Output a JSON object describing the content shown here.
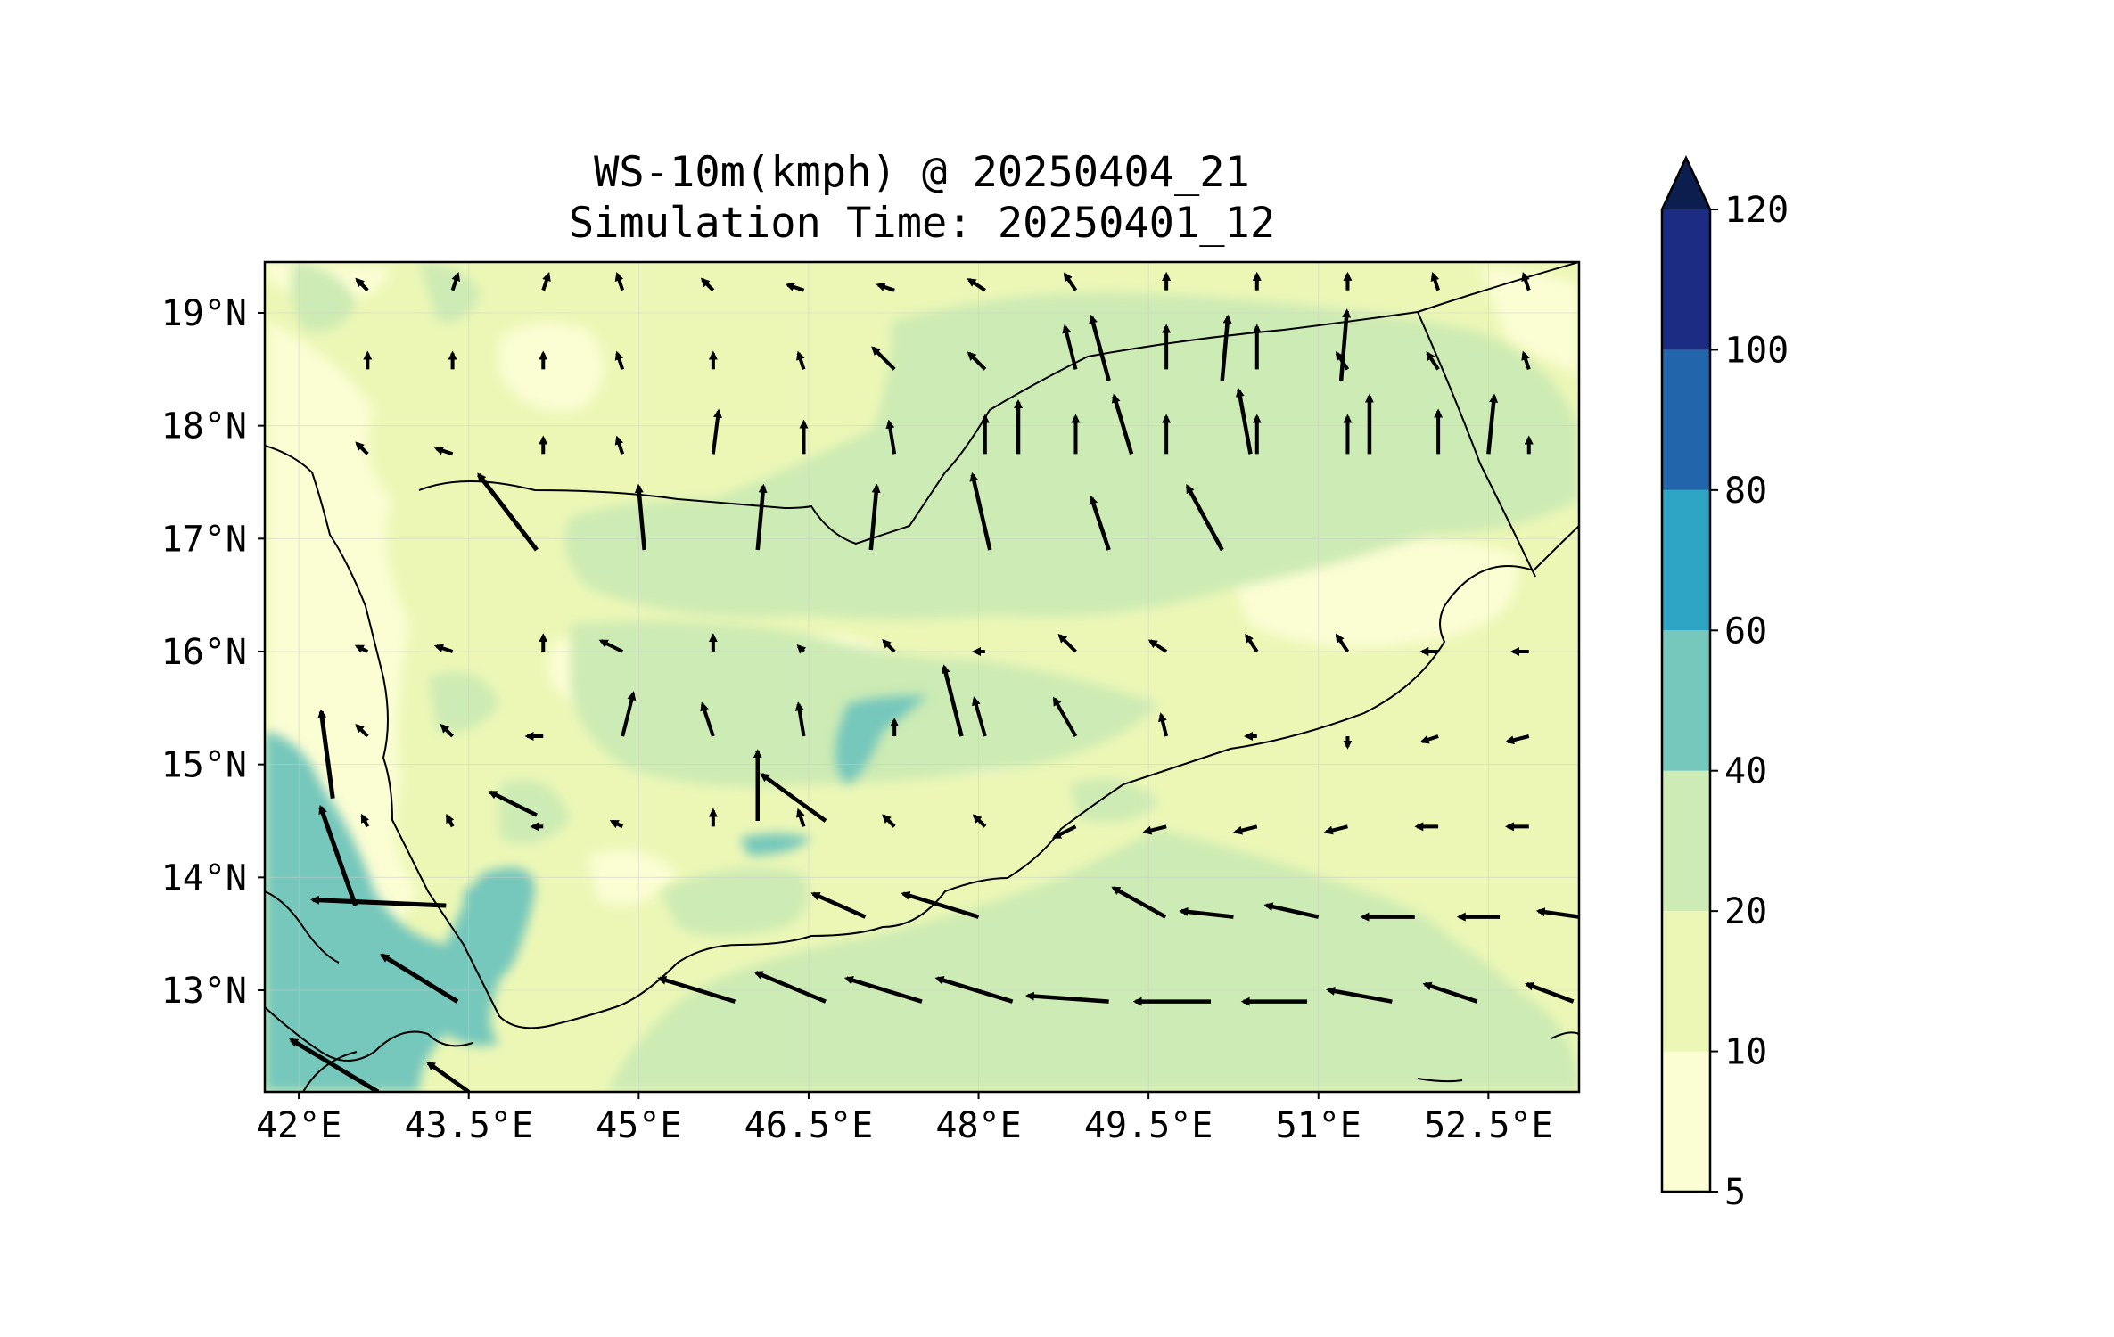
{
  "title_line1": "WS-10m(kmph) @ 20250404_21",
  "title_line2": "Simulation Time: 20250401_12",
  "map": {
    "lon_range": [
      41.7,
      53.3
    ],
    "lat_range": [
      12.1,
      19.45
    ],
    "x_ticks": [
      "42°E",
      "43.5°E",
      "45°E",
      "46.5°E",
      "48°E",
      "49.5°E",
      "51°E",
      "52.5°E"
    ],
    "y_ticks": [
      "19°N",
      "18°N",
      "17°N",
      "16°N",
      "15°N",
      "14°N",
      "13°N"
    ],
    "grid": true
  },
  "colorbar": {
    "levels": [
      "5",
      "10",
      "20",
      "40",
      "60",
      "80",
      "100",
      "120"
    ],
    "colors": [
      "#fbfdd3",
      "#ecf7b6",
      "#cdebb4",
      "#76c7bc",
      "#2ea4c5",
      "#2265ab",
      "#1d2c83"
    ],
    "extend_color": "#0c1e4d",
    "extend": "max"
  },
  "chart_data": {
    "type": "heatmap",
    "variable": "10 m wind speed (kmph) with wind vectors",
    "color_levels": [
      5,
      10,
      20,
      40,
      60,
      80,
      100,
      120
    ],
    "wind_vectors": [
      {
        "lon": 43.3,
        "lat": 13.75,
        "u": -23,
        "v": 1
      },
      {
        "lon": 42.5,
        "lat": 13.75,
        "u": -6,
        "v": 17
      },
      {
        "lon": 43.4,
        "lat": 12.9,
        "u": -13,
        "v": 8
      },
      {
        "lon": 43.5,
        "lat": 12.1,
        "u": -7,
        "v": 5
      },
      {
        "lon": 42.7,
        "lat": 12.1,
        "u": -15,
        "v": 9
      },
      {
        "lon": 42.3,
        "lat": 14.7,
        "u": -2,
        "v": 15
      },
      {
        "lon": 44.1,
        "lat": 14.55,
        "u": -8,
        "v": 4
      },
      {
        "lon": 44.1,
        "lat": 16.9,
        "u": -10,
        "v": 13
      },
      {
        "lon": 45.05,
        "lat": 16.9,
        "u": -1,
        "v": 11
      },
      {
        "lon": 46.05,
        "lat": 16.9,
        "u": 1,
        "v": 11
      },
      {
        "lon": 47.05,
        "lat": 16.9,
        "u": 1,
        "v": 11
      },
      {
        "lon": 48.1,
        "lat": 16.9,
        "u": -3,
        "v": 13
      },
      {
        "lon": 49.15,
        "lat": 16.9,
        "u": -3,
        "v": 9
      },
      {
        "lon": 50.15,
        "lat": 16.9,
        "u": -6,
        "v": 11
      },
      {
        "lon": 48.35,
        "lat": 17.75,
        "u": 0,
        "v": 9
      },
      {
        "lon": 49.35,
        "lat": 17.75,
        "u": -3,
        "v": 10
      },
      {
        "lon": 50.4,
        "lat": 17.75,
        "u": -2,
        "v": 11
      },
      {
        "lon": 51.45,
        "lat": 17.75,
        "u": 0,
        "v": 10
      },
      {
        "lon": 52.5,
        "lat": 17.75,
        "u": 1,
        "v": 10
      },
      {
        "lon": 49.15,
        "lat": 18.4,
        "u": -3,
        "v": 11
      },
      {
        "lon": 50.15,
        "lat": 18.4,
        "u": 1,
        "v": 11
      },
      {
        "lon": 51.2,
        "lat": 18.4,
        "u": 1,
        "v": 12
      },
      {
        "lon": 47.85,
        "lat": 15.25,
        "u": -3,
        "v": 12
      },
      {
        "lon": 46.65,
        "lat": 14.5,
        "u": -11,
        "v": 8
      },
      {
        "lon": 46.05,
        "lat": 14.5,
        "u": 0,
        "v": 12
      },
      {
        "lon": 49.65,
        "lat": 13.65,
        "u": -9,
        "v": 5
      },
      {
        "lon": 48.0,
        "lat": 13.65,
        "u": -13,
        "v": 4
      },
      {
        "lon": 47.0,
        "lat": 13.65,
        "u": -9,
        "v": 4
      },
      {
        "lon": 50.25,
        "lat": 13.65,
        "u": -9,
        "v": 1
      },
      {
        "lon": 51.0,
        "lat": 13.65,
        "u": -9,
        "v": 2
      },
      {
        "lon": 51.85,
        "lat": 13.65,
        "u": -9,
        "v": 0
      },
      {
        "lon": 52.6,
        "lat": 13.65,
        "u": -7,
        "v": 0
      },
      {
        "lon": 53.3,
        "lat": 13.65,
        "u": -7,
        "v": 1
      },
      {
        "lon": 45.85,
        "lat": 12.9,
        "u": -13,
        "v": 4
      },
      {
        "lon": 46.65,
        "lat": 12.9,
        "u": -12,
        "v": 5
      },
      {
        "lon": 47.5,
        "lat": 12.9,
        "u": -13,
        "v": 4
      },
      {
        "lon": 48.3,
        "lat": 12.9,
        "u": -13,
        "v": 4
      },
      {
        "lon": 49.15,
        "lat": 12.9,
        "u": -14,
        "v": 1
      },
      {
        "lon": 50.05,
        "lat": 12.9,
        "u": -13,
        "v": 0
      },
      {
        "lon": 50.9,
        "lat": 12.9,
        "u": -11,
        "v": 0
      },
      {
        "lon": 51.65,
        "lat": 12.9,
        "u": -11,
        "v": 2
      },
      {
        "lon": 52.4,
        "lat": 12.9,
        "u": -9,
        "v": 3
      },
      {
        "lon": 53.25,
        "lat": 12.9,
        "u": -8,
        "v": 3
      }
    ]
  }
}
